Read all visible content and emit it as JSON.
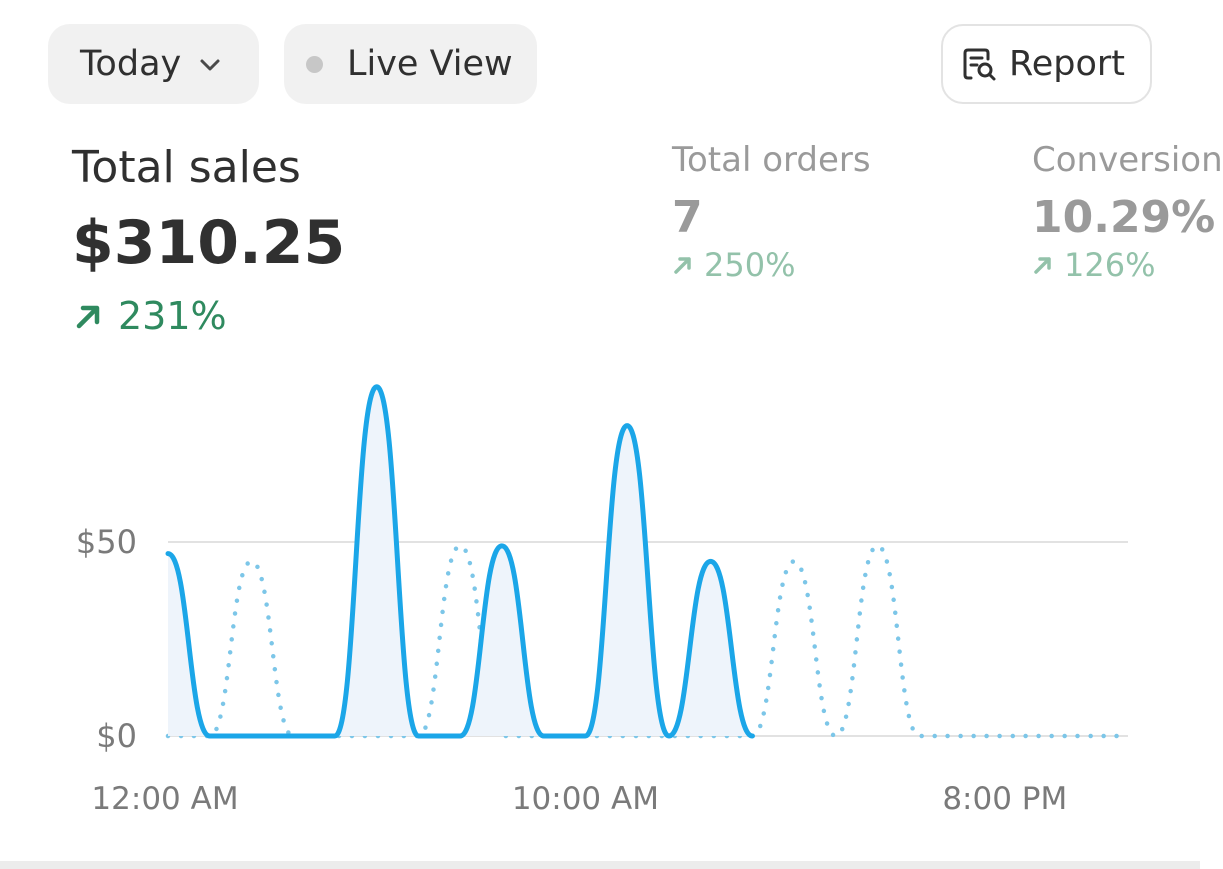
{
  "toolbar": {
    "date_range_label": "Today",
    "live_view_label": "Live View",
    "report_label": "Report"
  },
  "metrics": {
    "total_sales": {
      "label": "Total sales",
      "value": "$310.25",
      "delta": "231%"
    },
    "total_orders": {
      "label": "Total orders",
      "value": "7",
      "delta": "250%"
    },
    "conversion": {
      "label": "Conversion",
      "value": "10.29%",
      "delta": "126%"
    }
  },
  "colors": {
    "primary_line": "#1ba6e8",
    "comparison_line": "#7cc6e8",
    "positive": "#2f8a5f",
    "positive_muted": "#93c2aa"
  },
  "chart_data": {
    "type": "line",
    "x_labels": [
      "12:00 AM",
      "10:00 AM",
      "8:00 PM"
    ],
    "y_ticks": [
      "$50",
      "$0"
    ],
    "ylim": [
      0,
      90
    ],
    "series": [
      {
        "style": "solid",
        "peaks": [
          [
            0,
            47
          ],
          [
            5,
            90
          ],
          [
            8,
            49
          ],
          [
            11,
            80
          ],
          [
            13,
            45
          ]
        ],
        "x_range": [
          0,
          14
        ]
      },
      {
        "style": "dotted",
        "peaks": [
          [
            2,
            45
          ],
          [
            7,
            49
          ],
          [
            15,
            45
          ],
          [
            17,
            49
          ]
        ],
        "x_range": [
          0,
          23
        ]
      }
    ]
  }
}
